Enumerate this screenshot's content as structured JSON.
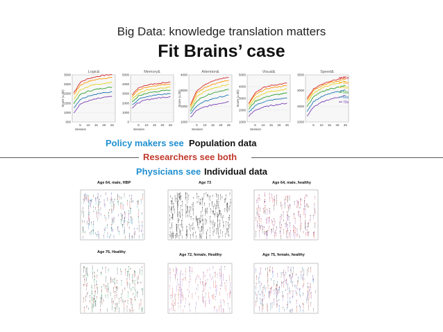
{
  "slide": {
    "subtitle": "Big Data: knowledge translation matters",
    "title": "Fit Brains’ case",
    "policy_label": "Policy makers see",
    "policy_value": "Population data",
    "researchers_label": "Researchers see both",
    "physicians_label": "Physicians see",
    "physicians_value": "Individual data"
  },
  "chart_data": [
    {
      "type": "line",
      "title": "Logic&",
      "xlabel": "Session",
      "ylabel": "Score (±.2E)",
      "x": [
        1,
        5,
        10,
        15,
        20,
        25
      ],
      "ylim": [
        500,
        3000
      ],
      "yticks": [
        500,
        1000,
        1500,
        2000,
        2500,
        3000
      ],
      "xticks": [
        5,
        10,
        15,
        20,
        25
      ],
      "series": [
        {
          "name": "20s",
          "values": [
            2050,
            2600,
            2800,
            2900,
            2980,
            3020
          ]
        },
        {
          "name": "30s",
          "values": [
            1950,
            2450,
            2650,
            2750,
            2820,
            2870
          ]
        },
        {
          "name": "40s",
          "values": [
            1700,
            2200,
            2380,
            2480,
            2550,
            2600
          ]
        },
        {
          "name": "50s",
          "values": [
            1500,
            1950,
            2130,
            2230,
            2300,
            2350
          ]
        },
        {
          "name": "60s",
          "values": [
            1250,
            1700,
            1880,
            1980,
            2050,
            2100
          ]
        },
        {
          "name": "70s",
          "values": [
            1000,
            1450,
            1620,
            1720,
            1800,
            1850
          ]
        }
      ]
    },
    {
      "type": "line",
      "title": "Memory&",
      "xlabel": "Session",
      "ylabel": "",
      "x": [
        1,
        5,
        10,
        15,
        20,
        25
      ],
      "ylim": [
        0,
        5000
      ],
      "yticks": [
        0,
        1000,
        2000,
        3000,
        4000,
        5000
      ],
      "xticks": [
        5,
        10,
        15,
        20,
        25
      ],
      "series": [
        {
          "name": "20s",
          "values": [
            2900,
            3600,
            3900,
            4050,
            4150,
            4250
          ]
        },
        {
          "name": "30s",
          "values": [
            2700,
            3400,
            3700,
            3850,
            3950,
            4050
          ]
        },
        {
          "name": "40s",
          "values": [
            2400,
            3050,
            3350,
            3500,
            3600,
            3700
          ]
        },
        {
          "name": "50s",
          "values": [
            2100,
            2750,
            3050,
            3200,
            3300,
            3400
          ]
        },
        {
          "name": "60s",
          "values": [
            1800,
            2400,
            2700,
            2850,
            2950,
            3050
          ]
        },
        {
          "name": "70s",
          "values": [
            1500,
            2050,
            2350,
            2500,
            2600,
            2700
          ]
        }
      ]
    },
    {
      "type": "line",
      "title": "Attention&",
      "xlabel": "Session",
      "ylabel": "Score (±.2E)",
      "x": [
        1,
        5,
        10,
        15,
        20,
        25
      ],
      "ylim": [
        1000,
        4000
      ],
      "yticks": [
        1000,
        2000,
        3000,
        4000
      ],
      "xticks": [
        5,
        10,
        15,
        20,
        25
      ],
      "series": [
        {
          "name": "20s",
          "values": [
            2100,
            3000,
            3400,
            3600,
            3750,
            3850
          ]
        },
        {
          "name": "30s",
          "values": [
            2000,
            2850,
            3200,
            3400,
            3550,
            3650
          ]
        },
        {
          "name": "40s",
          "values": [
            1850,
            2600,
            2950,
            3150,
            3280,
            3380
          ]
        },
        {
          "name": "50s",
          "values": [
            1700,
            2350,
            2650,
            2850,
            2980,
            3080
          ]
        },
        {
          "name": "60s",
          "values": [
            1500,
            2050,
            2300,
            2480,
            2600,
            2700
          ]
        },
        {
          "name": "70s",
          "values": [
            1300,
            1750,
            1950,
            2100,
            2200,
            2300
          ]
        }
      ]
    },
    {
      "type": "line",
      "title": "Visual&",
      "xlabel": "Session",
      "ylabel": "Score (±.2E)",
      "x": [
        1,
        5,
        10,
        15,
        20,
        25
      ],
      "ylim": [
        1000,
        5000
      ],
      "yticks": [
        1000,
        2000,
        3000,
        4000,
        5000
      ],
      "xticks": [
        5,
        10,
        15,
        20,
        25
      ],
      "series": [
        {
          "name": "20s",
          "values": [
            2600,
            3500,
            3900,
            4100,
            4200,
            4300
          ]
        },
        {
          "name": "30s",
          "values": [
            2500,
            3300,
            3700,
            3900,
            4000,
            4100
          ]
        },
        {
          "name": "40s",
          "values": [
            2300,
            3050,
            3400,
            3600,
            3700,
            3800
          ]
        },
        {
          "name": "50s",
          "values": [
            2100,
            2750,
            3050,
            3250,
            3350,
            3450
          ]
        },
        {
          "name": "60s",
          "values": [
            1800,
            2400,
            2700,
            2850,
            2950,
            3050
          ]
        },
        {
          "name": "70s",
          "values": [
            1500,
            2000,
            2250,
            2400,
            2500,
            2600
          ]
        }
      ]
    },
    {
      "type": "line",
      "title": "Speed&",
      "xlabel": "",
      "ylabel": "",
      "x": [
        1,
        5,
        10,
        15,
        20,
        25
      ],
      "ylim": [
        2000,
        3500
      ],
      "yticks": [
        2000,
        2500,
        3000,
        3500
      ],
      "xticks": [
        5,
        10,
        15,
        20,
        25
      ],
      "legend": "top-right",
      "series": [
        {
          "name": "20s",
          "values": [
            2750,
            3050,
            3200,
            3300,
            3350,
            3420
          ]
        },
        {
          "name": "30s",
          "values": [
            2700,
            3000,
            3150,
            3250,
            3300,
            3370
          ]
        },
        {
          "name": "40s",
          "values": [
            2620,
            2920,
            3070,
            3170,
            3230,
            3290
          ]
        },
        {
          "name": "50s",
          "values": [
            2500,
            2800,
            2950,
            3050,
            3100,
            3160
          ]
        },
        {
          "name": "60s",
          "values": [
            2350,
            2650,
            2800,
            2900,
            2960,
            3020
          ]
        },
        {
          "name": "70s",
          "values": [
            2200,
            2470,
            2620,
            2720,
            2780,
            2840
          ]
        }
      ]
    }
  ],
  "series_colors": [
    "#d62728",
    "#ff9900",
    "#e6d31a",
    "#2ca02c",
    "#1f77b4",
    "#7b3fb5"
  ],
  "scatter_panels": [
    {
      "title": "Age 64, male, HBP"
    },
    {
      "title": "Age 73"
    },
    {
      "title": "Age 64, male, healthy"
    },
    {
      "title": "Age 76, Healthy"
    },
    {
      "title": "Age 72, female, Healthy"
    },
    {
      "title": "Age 75, female, healthy"
    }
  ]
}
